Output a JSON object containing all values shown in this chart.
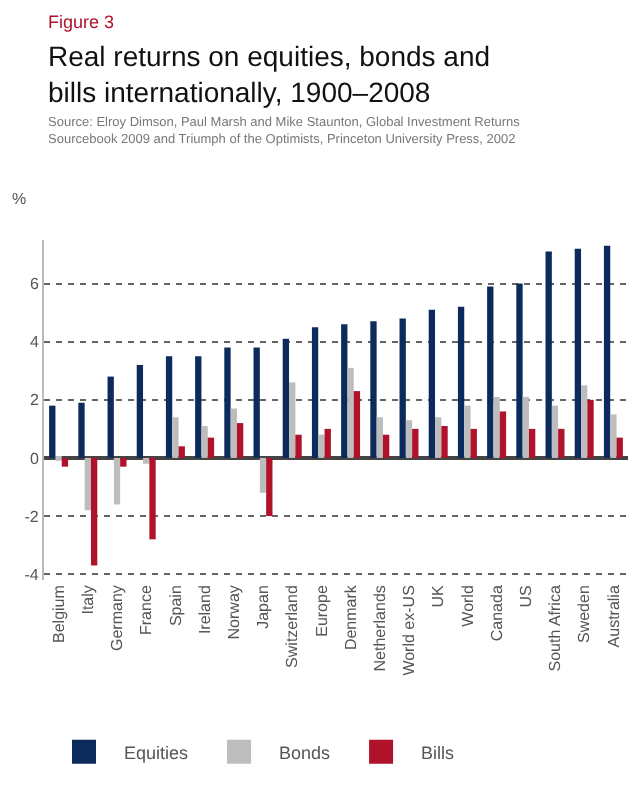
{
  "chart_data": {
    "type": "bar",
    "title": "Real returns on equities, bonds and bills internationally, 1900–2008",
    "subtitle": "Source: Elroy Dimson, Paul Marsh and Mike Staunton, Global Investment Returns Sourcebook 2009 and Triumph of the Optimists, Princeton University Press, 2002",
    "annotations": [
      "Figure 3"
    ],
    "ylabel": "%",
    "categories": [
      "Belgium",
      "Italy",
      "Germany",
      "France",
      "Spain",
      "Ireland",
      "Norway",
      "Japan",
      "Switzerland",
      "Europe",
      "Denmark",
      "Netherlands",
      "World ex-US",
      "UK",
      "World",
      "Canada",
      "US",
      "South Africa",
      "Sweden",
      "Australia"
    ],
    "series": [
      {
        "name": "Equities",
        "color": "#0d2a5c",
        "values": [
          1.8,
          1.9,
          2.8,
          3.2,
          3.5,
          3.5,
          3.8,
          3.8,
          4.1,
          4.5,
          4.6,
          4.7,
          4.8,
          5.1,
          5.2,
          5.9,
          6.0,
          7.1,
          7.2,
          7.3
        ]
      },
      {
        "name": "Bonds",
        "color": "#bdbdbd",
        "values": [
          -0.1,
          -1.8,
          -1.6,
          -0.2,
          1.4,
          1.1,
          1.7,
          -1.2,
          2.6,
          0.8,
          3.1,
          1.4,
          1.3,
          1.4,
          1.8,
          2.1,
          2.1,
          1.8,
          2.5,
          1.5
        ]
      },
      {
        "name": "Bills",
        "color": "#b0112b",
        "values": [
          -0.3,
          -3.7,
          -0.3,
          -2.8,
          0.4,
          0.7,
          1.2,
          -2.0,
          0.8,
          1.0,
          2.3,
          0.8,
          1.0,
          1.1,
          1.0,
          1.6,
          1.0,
          1.0,
          2.0,
          0.7
        ]
      }
    ],
    "ylim": [
      -4.2,
      7.5
    ],
    "yticks": [
      -4,
      -2,
      0,
      2,
      4,
      6
    ],
    "grid": "y",
    "legend": "bottom left"
  }
}
